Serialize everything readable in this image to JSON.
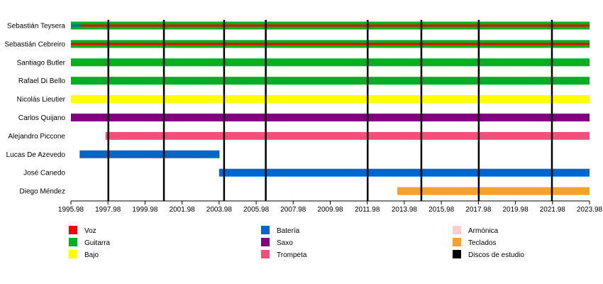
{
  "chart_data": {
    "type": "timeline",
    "title": "",
    "x_range": [
      1995.98,
      2023.98
    ],
    "x_ticks": [
      1995.98,
      1997.98,
      1999.98,
      2001.98,
      2003.98,
      2005.98,
      2007.98,
      2009.98,
      2011.98,
      2013.98,
      2015.98,
      2017.98,
      2019.98,
      2021.98,
      2023.98
    ],
    "x_tick_labels": [
      "1995.98",
      "1997.98",
      "1999.98",
      "2001.98",
      "2003.98",
      "2005.98",
      "2007.98",
      "2009.98",
      "2011.98",
      "2013.98",
      "2015.98",
      "2017.98",
      "2019.98",
      "2021.98",
      "2023.98"
    ],
    "members": [
      {
        "name": "Sebastián Teysera",
        "bars": [
          {
            "role": "Guitarra",
            "start": 1995.98,
            "end": 2023.98
          }
        ],
        "stripes": [
          {
            "role": "Voz",
            "start": 1995.98,
            "end": 2023.98
          },
          {
            "role": "Batería",
            "start": 1995.98,
            "end": 1996.5
          }
        ]
      },
      {
        "name": "Sebastián Cebreiro",
        "bars": [
          {
            "role": "Guitarra",
            "start": 1995.98,
            "end": 2023.98
          }
        ],
        "stripes": [
          {
            "role": "Voz",
            "start": 1995.98,
            "end": 2023.98
          }
        ]
      },
      {
        "name": "Santiago Butler",
        "bars": [
          {
            "role": "Guitarra",
            "start": 1995.98,
            "end": 2023.98
          }
        ],
        "stripes": []
      },
      {
        "name": "Rafael Di Bello",
        "bars": [
          {
            "role": "Guitarra",
            "start": 1995.98,
            "end": 2023.98
          }
        ],
        "stripes": []
      },
      {
        "name": "Nicolás Lieutier",
        "bars": [
          {
            "role": "Bajo",
            "start": 1995.98,
            "end": 2023.98
          }
        ],
        "stripes": []
      },
      {
        "name": "Carlos Quijano",
        "bars": [
          {
            "role": "Saxo",
            "start": 1995.98,
            "end": 2023.98
          }
        ],
        "stripes": []
      },
      {
        "name": "Alejandro Piccone",
        "bars": [
          {
            "role": "Trompeta",
            "start": 1997.85,
            "end": 2023.98
          }
        ],
        "stripes": []
      },
      {
        "name": "Lucas De Azevedo",
        "bars": [
          {
            "role": "Batería",
            "start": 1996.45,
            "end": 2004.0
          }
        ],
        "stripes": []
      },
      {
        "name": "José Canedo",
        "bars": [
          {
            "role": "Batería",
            "start": 2003.98,
            "end": 2023.98
          }
        ],
        "stripes": []
      },
      {
        "name": "Diego Méndez",
        "bars": [
          {
            "role": "Teclados",
            "start": 2013.6,
            "end": 2023.98
          }
        ],
        "stripes": []
      }
    ],
    "studio_albums": [
      1998.0,
      2001.0,
      2004.25,
      2006.5,
      2012.0,
      2014.9,
      2018.0,
      2021.95
    ],
    "legend": [
      {
        "label": "Voz",
        "color": "#ff0000"
      },
      {
        "label": "Guitarra",
        "color": "#00b020"
      },
      {
        "label": "Bajo",
        "color": "#ffff00"
      },
      {
        "label": "Batería",
        "color": "#0066cc"
      },
      {
        "label": "Saxo",
        "color": "#800080"
      },
      {
        "label": "Trompeta",
        "color": "#f2507a"
      },
      {
        "label": "Armónica",
        "color": "#ffcccc"
      },
      {
        "label": "Teclados",
        "color": "#f5a030"
      },
      {
        "label": "Discos de estudio",
        "color": "#000000"
      }
    ]
  }
}
